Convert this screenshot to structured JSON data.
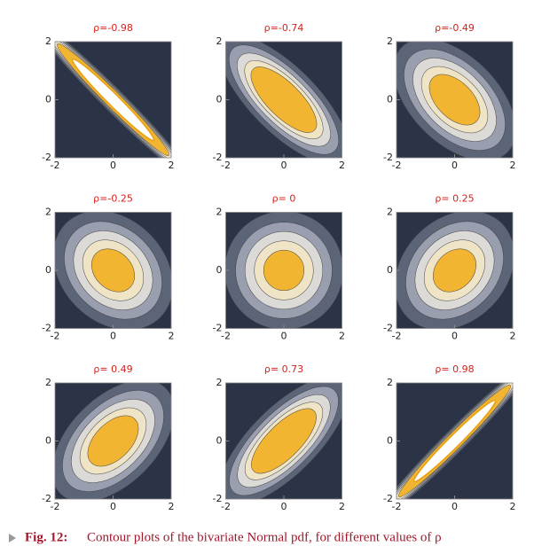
{
  "chart_data": [
    {
      "type": "contour",
      "title": "ρ=-0.98",
      "rho": -0.98,
      "xlim": [
        -2,
        2
      ],
      "ylim": [
        -2,
        2
      ],
      "xticks": [
        -2,
        0,
        2
      ],
      "yticks": [
        -2,
        0,
        2
      ]
    },
    {
      "type": "contour",
      "title": "ρ=-0.74",
      "rho": -0.74,
      "xlim": [
        -2,
        2
      ],
      "ylim": [
        -2,
        2
      ],
      "xticks": [
        -2,
        0,
        2
      ],
      "yticks": [
        -2,
        0,
        2
      ]
    },
    {
      "type": "contour",
      "title": "ρ=-0.49",
      "rho": -0.49,
      "xlim": [
        -2,
        2
      ],
      "ylim": [
        -2,
        2
      ],
      "xticks": [
        -2,
        0,
        2
      ],
      "yticks": [
        -2,
        0,
        2
      ]
    },
    {
      "type": "contour",
      "title": "ρ=-0.25",
      "rho": -0.25,
      "xlim": [
        -2,
        2
      ],
      "ylim": [
        -2,
        2
      ],
      "xticks": [
        -2,
        0,
        2
      ],
      "yticks": [
        -2,
        0,
        2
      ]
    },
    {
      "type": "contour",
      "title": "ρ= 0",
      "rho": 0,
      "xlim": [
        -2,
        2
      ],
      "ylim": [
        -2,
        2
      ],
      "xticks": [
        -2,
        0,
        2
      ],
      "yticks": [
        -2,
        0,
        2
      ]
    },
    {
      "type": "contour",
      "title": "ρ= 0.25",
      "rho": 0.25,
      "xlim": [
        -2,
        2
      ],
      "ylim": [
        -2,
        2
      ],
      "xticks": [
        -2,
        0,
        2
      ],
      "yticks": [
        -2,
        0,
        2
      ]
    },
    {
      "type": "contour",
      "title": "ρ= 0.49",
      "rho": 0.49,
      "xlim": [
        -2,
        2
      ],
      "ylim": [
        -2,
        2
      ],
      "xticks": [
        -2,
        0,
        2
      ],
      "yticks": [
        -2,
        0,
        2
      ]
    },
    {
      "type": "contour",
      "title": "ρ= 0.73",
      "rho": 0.73,
      "xlim": [
        -2,
        2
      ],
      "ylim": [
        -2,
        2
      ],
      "xticks": [
        -2,
        0,
        2
      ],
      "yticks": [
        -2,
        0,
        2
      ]
    },
    {
      "type": "contour",
      "title": "ρ= 0.98",
      "rho": 0.98,
      "xlim": [
        -2,
        2
      ],
      "ylim": [
        -2,
        2
      ],
      "xticks": [
        -2,
        0,
        2
      ],
      "yticks": [
        -2,
        0,
        2
      ]
    }
  ],
  "caption": {
    "label": "Fig. 12:",
    "text": "Contour plots of the bivariate Normal pdf, for different values of ρ"
  }
}
